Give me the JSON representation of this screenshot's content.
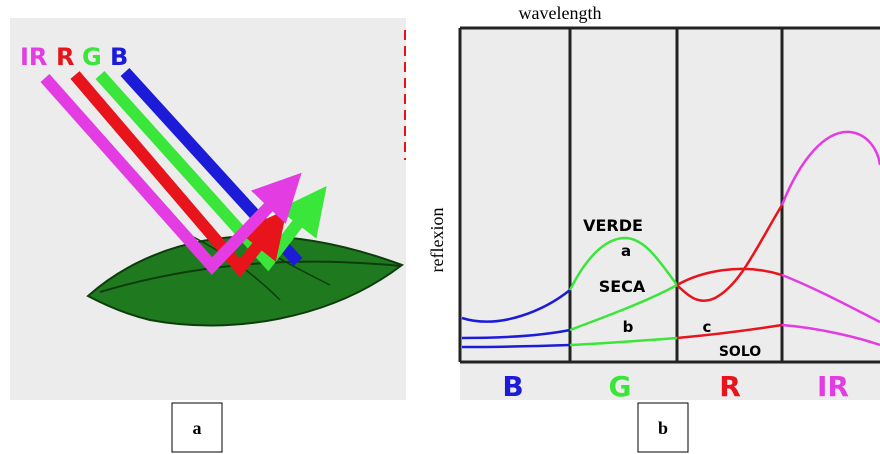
{
  "panel_a": {
    "labels": [
      "IR",
      "R",
      "G",
      "B"
    ],
    "caption": "a"
  },
  "panel_b": {
    "x_label": "wavelength",
    "y_label": "reflexion",
    "curve_labels": [
      "VERDE",
      "a",
      "SECA",
      "b",
      "c",
      "SOLO"
    ],
    "bands": [
      "B",
      "G",
      "R",
      "IR"
    ],
    "caption": "b"
  }
}
